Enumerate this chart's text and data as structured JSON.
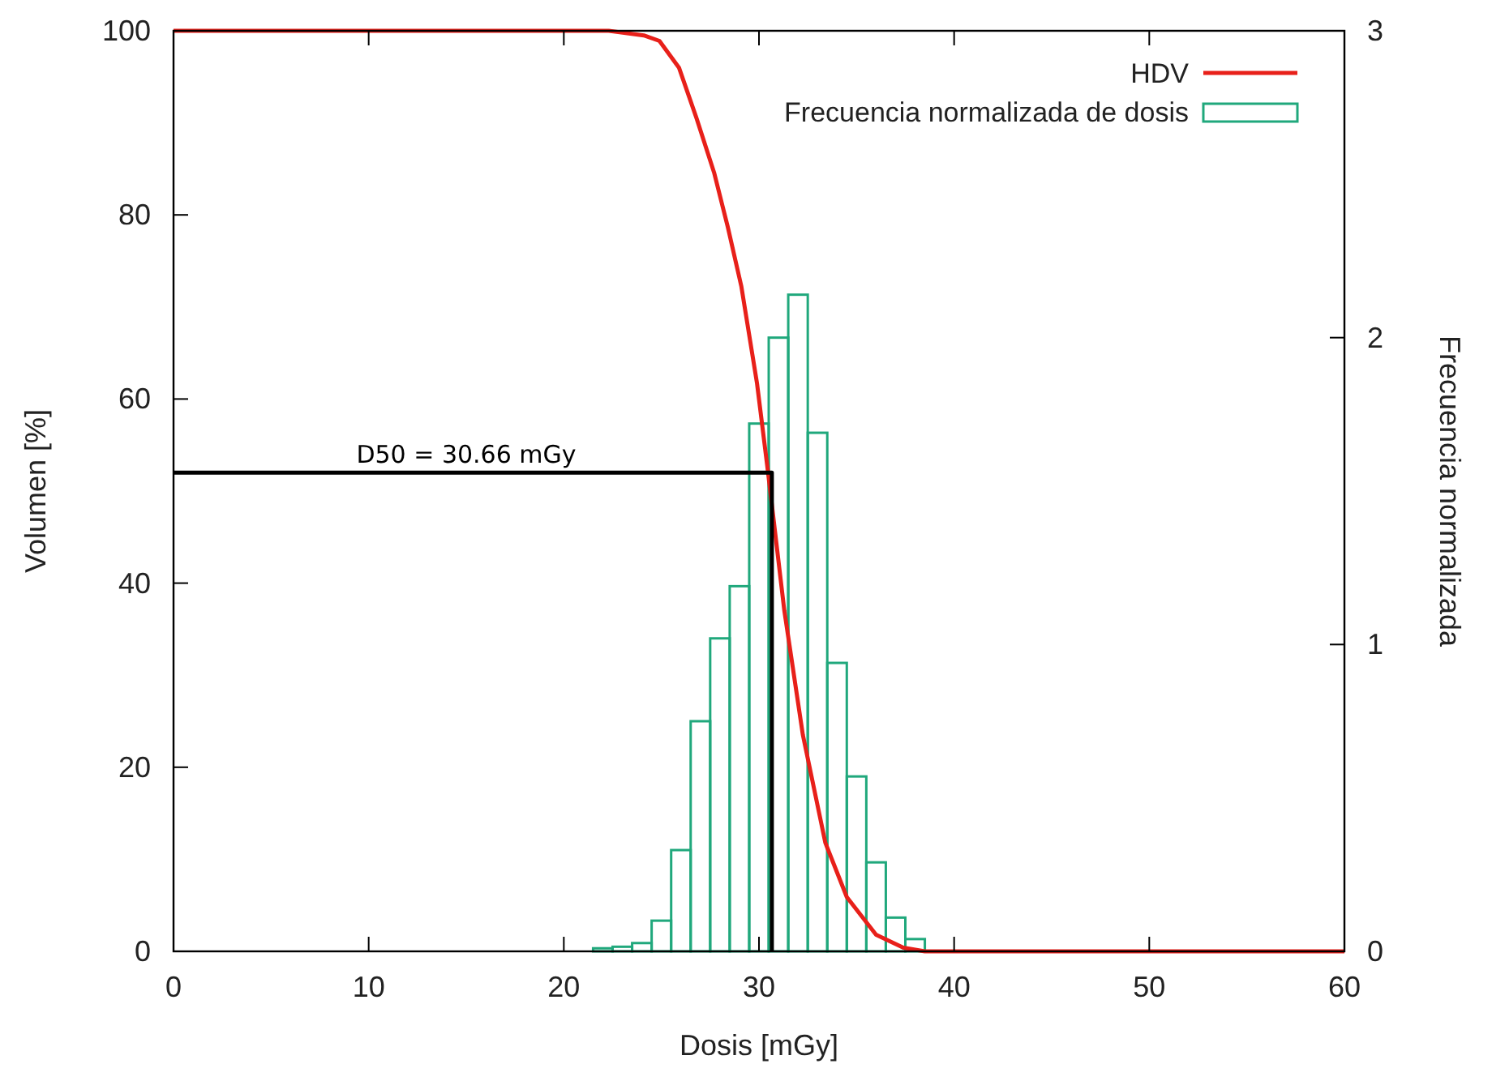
{
  "chart_data": {
    "type": "line",
    "xlabel": "Dosis [mGy]",
    "ylabel": "Volumen [%]",
    "y2label": "Frecuencia normalizada",
    "xlim": [
      0,
      60
    ],
    "xticks": [
      0,
      10,
      20,
      30,
      40,
      50,
      60
    ],
    "ylim": [
      0,
      100
    ],
    "yticks": [
      0,
      20,
      40,
      60,
      80,
      100
    ],
    "y2lim": [
      0,
      3
    ],
    "y2ticks": [
      0,
      1,
      2,
      3
    ],
    "legend": "top right",
    "grid": false,
    "annotations": [
      {
        "text": "D50 = 30.66 mGy",
        "x": 15,
        "y": 52
      }
    ],
    "series": [
      {
        "name": "HDV",
        "type": "line",
        "color": "#e8201a",
        "x": [
          0,
          22.3,
          24.1,
          24.9,
          25.9,
          26.8,
          27.7,
          28.4,
          29.1,
          29.9,
          30.45,
          31.3,
          32.25,
          33.4,
          34.5,
          36.0,
          37.4,
          38.5,
          60
        ],
        "values": [
          100,
          100,
          99.5,
          98.9,
          96,
          90.5,
          84.6,
          78.7,
          72.2,
          61.7,
          52.3,
          37,
          23.5,
          11.8,
          5.9,
          1.8,
          0.4,
          0,
          0
        ]
      },
      {
        "name": "Frecuencia normalizada de dosis",
        "type": "histogram",
        "axis": "y2",
        "color": "#20a87c",
        "bins": [
          21.5,
          22.5,
          23.5,
          24.5,
          25.5,
          26.5,
          27.5,
          28.5,
          29.5,
          30.5,
          31.5,
          32.5,
          33.5,
          34.5,
          35.5,
          36.5,
          37.5,
          38.5
        ],
        "values": [
          0.01,
          0.015,
          0.027,
          0.1,
          0.33,
          0.75,
          1.02,
          1.19,
          1.72,
          2.0,
          2.14,
          1.69,
          0.94,
          0.57,
          0.29,
          0.11,
          0.04
        ]
      },
      {
        "type": "line",
        "color": "#000000",
        "x": [
          0,
          30.66,
          30.66
        ],
        "values": [
          52,
          52,
          0
        ]
      }
    ]
  }
}
